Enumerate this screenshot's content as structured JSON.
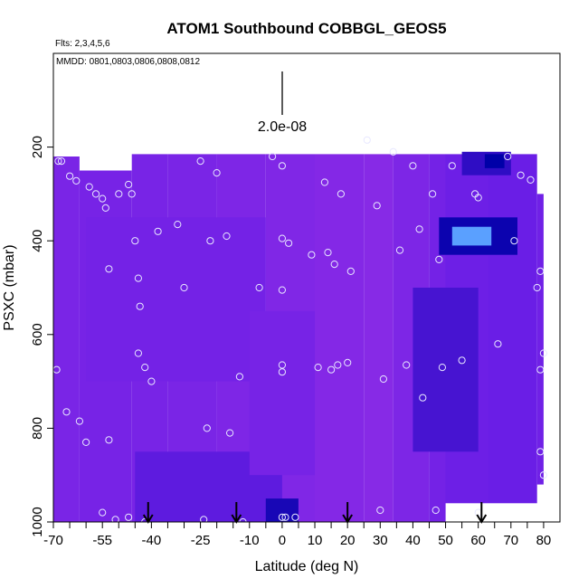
{
  "chart_data": {
    "type": "heatmap",
    "title": "ATOM1 Southbound COBBGL_GEOS5",
    "flights_note": "Flts: 2,3,4,5,6",
    "dates_note": "MMDD: 0801,0803,0806,0808,0812",
    "xlabel": "Latitude (deg N)",
    "ylabel": "PSXC (mbar)",
    "xlim": [
      -70,
      85
    ],
    "ylim": [
      1000,
      0
    ],
    "xticks": [
      -70,
      -55,
      -40,
      -25,
      -10,
      0,
      10,
      20,
      30,
      40,
      50,
      60,
      70,
      80
    ],
    "xminor": [
      -65,
      -60,
      -50,
      -45,
      -35,
      -30,
      -20,
      -15,
      -5,
      5,
      15,
      25,
      35,
      45,
      55,
      65,
      75
    ],
    "yticks": [
      200,
      400,
      600,
      800,
      1000
    ],
    "scale_value": 2e-08,
    "scale_label": "2.0e-08",
    "arrows_lat": [
      -41,
      -14,
      20,
      61
    ],
    "colors": {
      "low": "#8a2be6",
      "mid": "#6a1ee6",
      "high": "#0000a8",
      "peak": "#5aa0ff",
      "marker": "#e8e8ff"
    },
    "regions": [
      {
        "lat": [
          -70,
          -62
        ],
        "p": [
          220,
          1000
        ],
        "level": 0.25
      },
      {
        "lat": [
          -62,
          -46
        ],
        "p": [
          250,
          1000
        ],
        "level": 0.3
      },
      {
        "lat": [
          -46,
          -35
        ],
        "p": [
          215,
          1000
        ],
        "level": 0.28
      },
      {
        "lat": [
          -35,
          -20
        ],
        "p": [
          215,
          1000
        ],
        "level": 0.25
      },
      {
        "lat": [
          -20,
          -5
        ],
        "p": [
          215,
          1000
        ],
        "level": 0.18
      },
      {
        "lat": [
          -5,
          10
        ],
        "p": [
          215,
          1000
        ],
        "level": 0.15
      },
      {
        "lat": [
          10,
          25
        ],
        "p": [
          215,
          1000
        ],
        "level": 0.1
      },
      {
        "lat": [
          25,
          34
        ],
        "p": [
          215,
          1000
        ],
        "level": 0.05
      },
      {
        "lat": [
          34,
          45
        ],
        "p": [
          215,
          1000
        ],
        "level": 0.2
      },
      {
        "lat": [
          45,
          50
        ],
        "p": [
          215,
          1000
        ],
        "level": 0.35
      },
      {
        "lat": [
          50,
          63
        ],
        "p": [
          215,
          960
        ],
        "level": 0.45
      },
      {
        "lat": [
          63,
          78
        ],
        "p": [
          215,
          960
        ],
        "level": 0.5
      },
      {
        "lat": [
          78,
          80
        ],
        "p": [
          300,
          920
        ],
        "level": 0.4
      },
      {
        "lat": [
          -60,
          -5
        ],
        "p": [
          350,
          700
        ],
        "level": 0.35
      },
      {
        "lat": [
          -45,
          0
        ],
        "p": [
          850,
          1000
        ],
        "level": 0.55
      },
      {
        "lat": [
          -10,
          10
        ],
        "p": [
          550,
          900
        ],
        "level": 0.3
      },
      {
        "lat": [
          -5,
          5
        ],
        "p": [
          950,
          1000
        ],
        "level": 0.85
      },
      {
        "lat": [
          40,
          60
        ],
        "p": [
          500,
          850
        ],
        "level": 0.65
      },
      {
        "lat": [
          55,
          70
        ],
        "p": [
          210,
          260
        ],
        "level": 0.75
      },
      {
        "lat": [
          62,
          68
        ],
        "p": [
          215,
          245
        ],
        "level": 0.95
      },
      {
        "lat": [
          48,
          72
        ],
        "p": [
          350,
          430
        ],
        "level": 0.9
      },
      {
        "lat": [
          52,
          64
        ],
        "p": [
          370,
          410
        ],
        "level": 1.0
      }
    ],
    "points": [
      {
        "lat": -68.5,
        "p": 230
      },
      {
        "lat": -67.5,
        "p": 230
      },
      {
        "lat": -65,
        "p": 262
      },
      {
        "lat": -63,
        "p": 272
      },
      {
        "lat": -59,
        "p": 285
      },
      {
        "lat": -57,
        "p": 300
      },
      {
        "lat": -55,
        "p": 310
      },
      {
        "lat": -54,
        "p": 330
      },
      {
        "lat": -50,
        "p": 300
      },
      {
        "lat": -47,
        "p": 280
      },
      {
        "lat": -46,
        "p": 300
      },
      {
        "lat": -45,
        "p": 400
      },
      {
        "lat": -44,
        "p": 480
      },
      {
        "lat": -43.5,
        "p": 540
      },
      {
        "lat": -42,
        "p": 670
      },
      {
        "lat": -44,
        "p": 640
      },
      {
        "lat": -40,
        "p": 700
      },
      {
        "lat": -38,
        "p": 380
      },
      {
        "lat": -32,
        "p": 365
      },
      {
        "lat": -30,
        "p": 500
      },
      {
        "lat": -25,
        "p": 230
      },
      {
        "lat": -22,
        "p": 400
      },
      {
        "lat": -20,
        "p": 255
      },
      {
        "lat": -17,
        "p": 390
      },
      {
        "lat": -13,
        "p": 690
      },
      {
        "lat": -16,
        "p": 810
      },
      {
        "lat": -12,
        "p": 1000
      },
      {
        "lat": -7,
        "p": 500
      },
      {
        "lat": -3,
        "p": 220
      },
      {
        "lat": 0,
        "p": 240
      },
      {
        "lat": 0,
        "p": 395
      },
      {
        "lat": 2,
        "p": 405
      },
      {
        "lat": 0,
        "p": 505
      },
      {
        "lat": 0,
        "p": 665
      },
      {
        "lat": 0,
        "p": 680
      },
      {
        "lat": 0,
        "p": 990
      },
      {
        "lat": 1,
        "p": 990
      },
      {
        "lat": 4,
        "p": 990
      },
      {
        "lat": 9,
        "p": 430
      },
      {
        "lat": 11,
        "p": 670
      },
      {
        "lat": 13,
        "p": 275
      },
      {
        "lat": 14,
        "p": 425
      },
      {
        "lat": 15,
        "p": 675
      },
      {
        "lat": 16,
        "p": 450
      },
      {
        "lat": 17,
        "p": 665
      },
      {
        "lat": 18,
        "p": 300
      },
      {
        "lat": 20,
        "p": 660
      },
      {
        "lat": 21,
        "p": 465
      },
      {
        "lat": 26,
        "p": 185
      },
      {
        "lat": 29,
        "p": 325
      },
      {
        "lat": 31,
        "p": 695
      },
      {
        "lat": 34,
        "p": 210
      },
      {
        "lat": 36,
        "p": 420
      },
      {
        "lat": 38,
        "p": 665
      },
      {
        "lat": 40,
        "p": 240
      },
      {
        "lat": 42,
        "p": 375
      },
      {
        "lat": 43,
        "p": 735
      },
      {
        "lat": 46,
        "p": 300
      },
      {
        "lat": 48,
        "p": 440
      },
      {
        "lat": 49,
        "p": 670
      },
      {
        "lat": 52,
        "p": 240
      },
      {
        "lat": 55,
        "p": 655
      },
      {
        "lat": 59,
        "p": 300
      },
      {
        "lat": 60,
        "p": 308
      },
      {
        "lat": 66,
        "p": 620
      },
      {
        "lat": 69,
        "p": 220
      },
      {
        "lat": 71,
        "p": 400
      },
      {
        "lat": 73,
        "p": 260
      },
      {
        "lat": 76,
        "p": 270
      },
      {
        "lat": 78,
        "p": 500
      },
      {
        "lat": 79,
        "p": 465
      },
      {
        "lat": 80,
        "p": 640
      },
      {
        "lat": 79,
        "p": 675
      },
      {
        "lat": 79,
        "p": 850
      },
      {
        "lat": 80,
        "p": 900
      },
      {
        "lat": -53,
        "p": 460
      },
      {
        "lat": -69,
        "p": 675
      },
      {
        "lat": -66,
        "p": 765
      },
      {
        "lat": -62,
        "p": 785
      },
      {
        "lat": -60,
        "p": 830
      },
      {
        "lat": -53,
        "p": 825
      },
      {
        "lat": -55,
        "p": 980
      },
      {
        "lat": -51,
        "p": 995
      },
      {
        "lat": -47,
        "p": 990
      },
      {
        "lat": -42,
        "p": 1000
      },
      {
        "lat": -23,
        "p": 800
      },
      {
        "lat": -24,
        "p": 995
      },
      {
        "lat": 30,
        "p": 975
      },
      {
        "lat": 37,
        "p": 1012
      },
      {
        "lat": 40,
        "p": 1010
      },
      {
        "lat": 47,
        "p": 975
      },
      {
        "lat": 60,
        "p": 980
      }
    ]
  }
}
